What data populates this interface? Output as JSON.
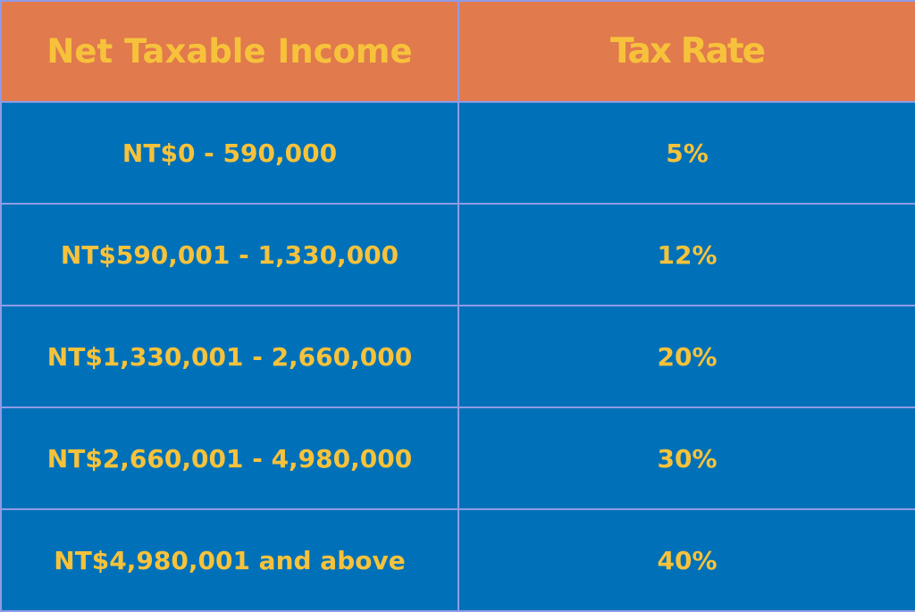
{
  "table": {
    "headers": {
      "income": "Net Taxable Income",
      "rate": "Tax Rate"
    },
    "rows": [
      {
        "income": "NT$0 - 590,000",
        "rate": "5%"
      },
      {
        "income": "NT$590,001 - 1,330,000",
        "rate": "12%"
      },
      {
        "income": "NT$1,330,001 - 2,660,000",
        "rate": "20%"
      },
      {
        "income": "NT$2,660,001 - 4,980,000",
        "rate": "30%"
      },
      {
        "income": "NT$4,980,001 and above",
        "rate": "40%"
      }
    ]
  },
  "colors": {
    "header_background": "#e17a4d",
    "body_background": "#0071b8",
    "text": "#f7c23b",
    "grid_lines": "#8f9be6"
  }
}
